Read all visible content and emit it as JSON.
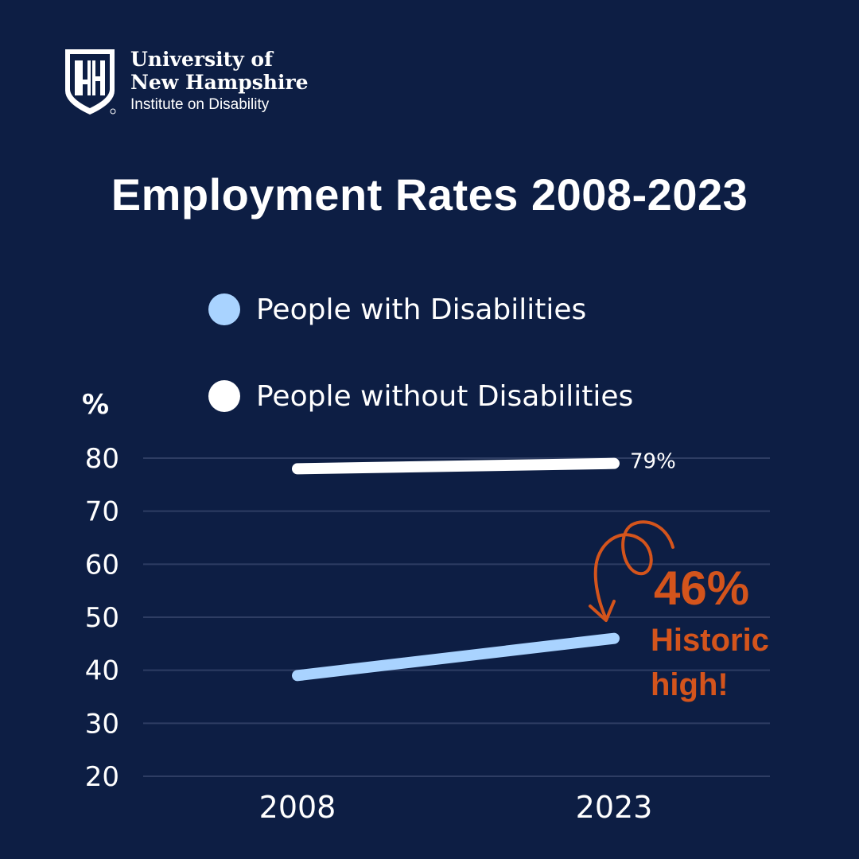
{
  "logo": {
    "line1": "University of",
    "line2": "New Hampshire",
    "line3": "Institute on Disability",
    "mark": "UNH"
  },
  "chart_data": {
    "type": "line",
    "title": "Employment Rates 2008-2023",
    "ylabel": "%",
    "xlabel": "",
    "categories": [
      "2008",
      "2023"
    ],
    "ylim": [
      20,
      80
    ],
    "yticks": [
      80,
      70,
      60,
      50,
      40,
      30,
      20
    ],
    "grid": true,
    "legend_position": "top",
    "series": [
      {
        "name": "People with Disabilities",
        "values": [
          39,
          46
        ],
        "color": "#a9d3ff"
      },
      {
        "name": "People without Disabilities",
        "values": [
          78,
          79
        ],
        "color": "#ffffff"
      }
    ],
    "data_labels": {
      "without_end": "79%"
    },
    "annotation": {
      "value": "46%",
      "line1": "Historic",
      "line2": "high!",
      "color": "#d4541c"
    }
  },
  "colors": {
    "background": "#0d1e44",
    "gridline": "#2e3d63",
    "accent": "#d4541c"
  }
}
